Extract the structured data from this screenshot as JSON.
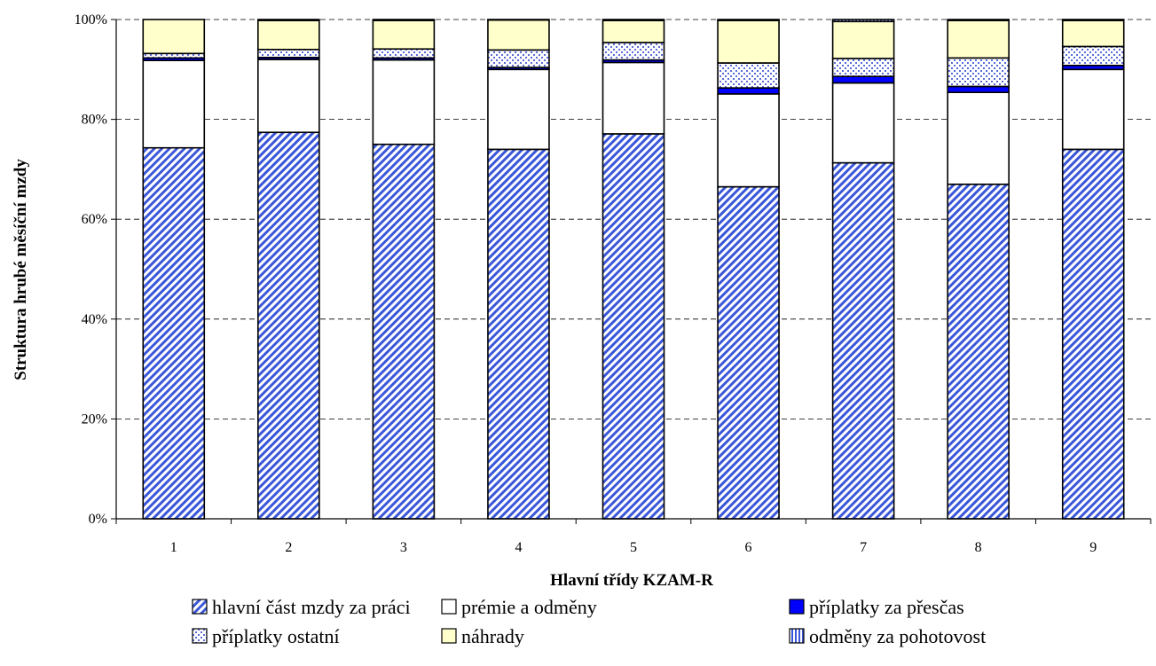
{
  "chart_data": {
    "type": "bar",
    "stacked": true,
    "percent": true,
    "categories": [
      "1",
      "2",
      "3",
      "4",
      "5",
      "6",
      "7",
      "8",
      "9"
    ],
    "xlabel": "Hlavní třídy KZAM-R",
    "ylabel": "Struktura hrubé měsíční mzdy",
    "yticks": [
      "0%",
      "20%",
      "40%",
      "60%",
      "80%",
      "100%"
    ],
    "ylim": [
      0,
      100
    ],
    "grid": "horizontal dashed",
    "legend_position": "bottom",
    "series": [
      {
        "name": "hlavní část mzdy za práci",
        "pattern": "diagonal-hatch",
        "color": "#3b57d9",
        "values": [
          74.3,
          77.4,
          75.0,
          74.0,
          77.1,
          66.5,
          71.3,
          67.0,
          74.0
        ]
      },
      {
        "name": "prémie a odměny",
        "pattern": "solid",
        "color": "#ffffff",
        "values": [
          17.5,
          14.6,
          16.9,
          16.0,
          14.3,
          18.6,
          16.0,
          18.4,
          16.0
        ]
      },
      {
        "name": "příplatky  za přesčas",
        "pattern": "solid",
        "color": "#0000ff",
        "values": [
          0.5,
          0.4,
          0.4,
          0.4,
          0.5,
          1.2,
          1.3,
          1.2,
          0.8
        ]
      },
      {
        "name": "příplatky ostatní",
        "pattern": "dots",
        "color": "#5b6bd6",
        "values": [
          0.9,
          1.6,
          1.8,
          3.5,
          3.5,
          5.0,
          3.6,
          5.7,
          3.8
        ]
      },
      {
        "name": "náhrady",
        "pattern": "solid",
        "color": "#ffffcc",
        "values": [
          6.8,
          5.8,
          5.7,
          6.0,
          4.4,
          8.5,
          7.4,
          7.5,
          5.2
        ]
      },
      {
        "name": "odměny za pohotovost",
        "pattern": "vertical-lines",
        "color": "#3b57d9",
        "values": [
          0.0,
          0.2,
          0.2,
          0.1,
          0.2,
          0.2,
          0.4,
          0.2,
          0.2
        ]
      }
    ]
  }
}
